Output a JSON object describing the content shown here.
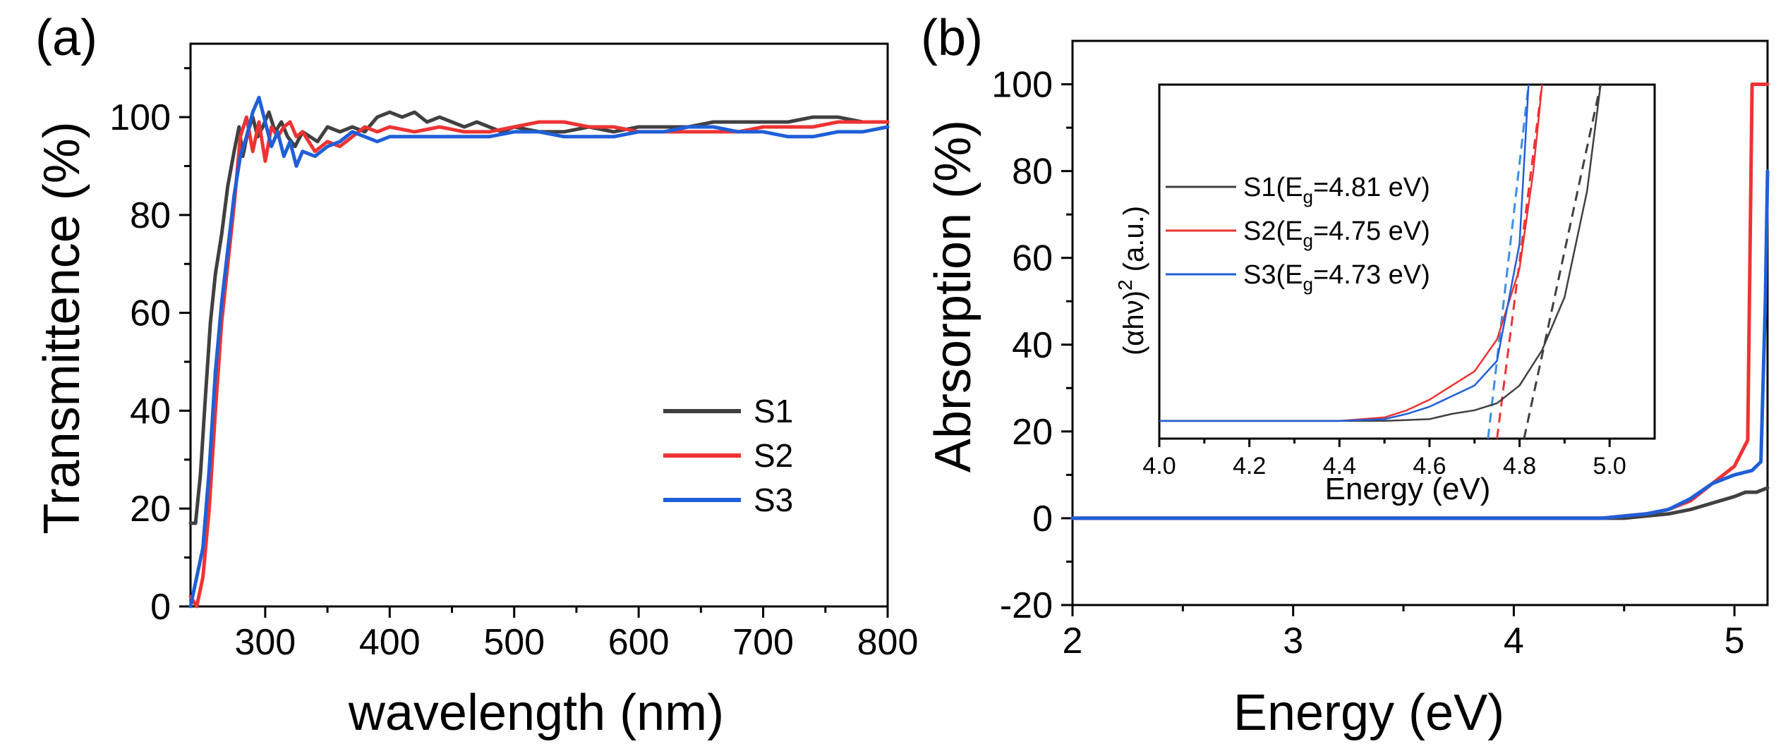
{
  "colors": {
    "S1": "#404040",
    "S2": "#ee3333",
    "S3": "#1f5fd8",
    "S3_light": "#3a8fe8"
  },
  "chart_data": [
    {
      "panel_label": "(a)",
      "type": "line",
      "title": "",
      "xlabel": "wavelength (nm)",
      "ylabel": "Transmittence (%)",
      "xlim": [
        240,
        800
      ],
      "ylim": [
        0,
        115
      ],
      "xticks": [
        300,
        400,
        500,
        600,
        700,
        800
      ],
      "yticks": [
        0,
        20,
        40,
        60,
        80,
        100
      ],
      "legend_position": "bottom-right",
      "legend": [
        "S1",
        "S2",
        "S3"
      ],
      "series": [
        {
          "name": "S1",
          "color": "#404040",
          "x": [
            240,
            244,
            248,
            252,
            256,
            260,
            265,
            270,
            275,
            279,
            282,
            286,
            290,
            294,
            298,
            303,
            308,
            313,
            318,
            324,
            330,
            336,
            342,
            350,
            360,
            370,
            380,
            390,
            400,
            410,
            420,
            430,
            440,
            450,
            460,
            470,
            480,
            490,
            500,
            520,
            540,
            560,
            580,
            600,
            620,
            640,
            660,
            680,
            700,
            720,
            740,
            760,
            780,
            800
          ],
          "y": [
            17,
            17,
            27,
            43,
            58,
            68,
            76,
            86,
            93,
            98,
            92,
            97,
            100,
            96,
            98,
            101,
            97,
            99,
            96,
            94,
            97,
            96,
            95,
            98,
            97,
            98,
            97,
            100,
            101,
            100,
            101,
            99,
            100,
            99,
            98,
            99,
            98,
            97,
            98,
            97,
            97,
            98,
            97,
            98,
            98,
            98,
            99,
            99,
            99,
            99,
            100,
            100,
            99,
            99
          ]
        },
        {
          "name": "S2",
          "color": "#ee3333",
          "x": [
            240,
            245,
            250,
            255,
            260,
            265,
            270,
            275,
            280,
            285,
            290,
            295,
            300,
            305,
            310,
            315,
            320,
            325,
            330,
            340,
            350,
            360,
            370,
            380,
            390,
            400,
            420,
            440,
            460,
            480,
            500,
            520,
            540,
            560,
            580,
            600,
            620,
            640,
            660,
            680,
            700,
            720,
            740,
            760,
            780,
            800
          ],
          "y": [
            2,
            0,
            6,
            20,
            40,
            58,
            70,
            82,
            96,
            100,
            93,
            99,
            91,
            98,
            96,
            98,
            99,
            96,
            97,
            93,
            95,
            94,
            96,
            98,
            97,
            98,
            97,
            98,
            97,
            97,
            98,
            99,
            99,
            98,
            98,
            97,
            97,
            97,
            97,
            97,
            98,
            98,
            98,
            99,
            99,
            99
          ]
        },
        {
          "name": "S3",
          "color": "#1f5fd8",
          "x": [
            240,
            245,
            250,
            255,
            260,
            265,
            270,
            275,
            280,
            285,
            290,
            295,
            300,
            305,
            310,
            315,
            320,
            325,
            330,
            340,
            350,
            360,
            370,
            380,
            390,
            400,
            420,
            440,
            460,
            480,
            500,
            520,
            540,
            560,
            580,
            600,
            620,
            640,
            660,
            680,
            700,
            720,
            740,
            760,
            780,
            800
          ],
          "y": [
            0,
            6,
            12,
            28,
            48,
            62,
            73,
            84,
            92,
            96,
            101,
            104,
            99,
            94,
            97,
            92,
            95,
            90,
            93,
            92,
            94,
            95,
            97,
            96,
            95,
            96,
            96,
            96,
            96,
            96,
            97,
            97,
            96,
            96,
            96,
            97,
            97,
            98,
            98,
            97,
            97,
            96,
            96,
            97,
            97,
            98
          ]
        }
      ]
    },
    {
      "panel_label": "(b)",
      "type": "line",
      "title": "",
      "xlabel": "Energy (eV)",
      "ylabel": "Abrsorption (%)",
      "xlim": [
        2,
        5.15
      ],
      "ylim": [
        -20,
        110
      ],
      "xticks": [
        2,
        3,
        4,
        5
      ],
      "yticks": [
        -20,
        0,
        20,
        40,
        60,
        80,
        100
      ],
      "series": [
        {
          "name": "S1",
          "color": "#404040",
          "x": [
            2.0,
            2.5,
            3.0,
            3.5,
            4.0,
            4.2,
            4.4,
            4.5,
            4.6,
            4.7,
            4.8,
            4.9,
            5.0,
            5.05,
            5.1,
            5.15
          ],
          "y": [
            0,
            0,
            0,
            0,
            0,
            0,
            0,
            0,
            0.5,
            1,
            2,
            3.5,
            5,
            6,
            6,
            7
          ]
        },
        {
          "name": "S2",
          "color": "#ee3333",
          "x": [
            2.0,
            2.5,
            3.0,
            3.5,
            4.0,
            4.2,
            4.4,
            4.5,
            4.6,
            4.7,
            4.8,
            4.9,
            5.0,
            5.06,
            5.08,
            5.1,
            5.15
          ],
          "y": [
            0,
            0,
            0,
            0,
            0,
            0,
            0,
            0.5,
            1,
            2,
            4,
            8,
            12,
            18,
            100,
            100,
            100
          ]
        },
        {
          "name": "S3",
          "color": "#1f5fd8",
          "x": [
            2.0,
            2.5,
            3.0,
            3.5,
            4.0,
            4.2,
            4.4,
            4.5,
            4.6,
            4.7,
            4.8,
            4.9,
            5.0,
            5.08,
            5.12,
            5.14,
            5.15
          ],
          "y": [
            0,
            0,
            0,
            0,
            0,
            0,
            0,
            0.5,
            1,
            2,
            4.5,
            8,
            10,
            11,
            13,
            50,
            80
          ]
        }
      ]
    },
    {
      "panel_label": "inset",
      "type": "line",
      "title": "",
      "xlabel": "Energy (eV)",
      "ylabel_parts": {
        "pre": "(αhν)",
        "sup": "2",
        "post": " (a.u.)"
      },
      "xlim": [
        4.0,
        5.1
      ],
      "ylim": [
        0,
        1
      ],
      "xticks": [
        4.0,
        4.2,
        4.4,
        4.6,
        4.8,
        5.0
      ],
      "xtick_labels": [
        "4.0",
        "4.2",
        "4.4",
        "4.6",
        "4.8",
        "5.0"
      ],
      "legend_position": "top-left",
      "legend": [
        {
          "name": "S1",
          "pre": "S1(E",
          "sub": "g",
          "post": "=4.81 eV)"
        },
        {
          "name": "S2",
          "pre": "S2(E",
          "sub": "g",
          "post": "=4.75 eV)"
        },
        {
          "name": "S3",
          "pre": "S3(E",
          "sub": "g",
          "post": "=4.73 eV)"
        }
      ],
      "series": [
        {
          "name": "S1",
          "color": "#404040",
          "x": [
            4.0,
            4.2,
            4.4,
            4.5,
            4.6,
            4.65,
            4.7,
            4.75,
            4.8,
            4.85,
            4.9,
            4.95,
            4.98
          ],
          "y": [
            0.05,
            0.05,
            0.05,
            0.05,
            0.055,
            0.07,
            0.08,
            0.1,
            0.15,
            0.25,
            0.4,
            0.7,
            1.0
          ]
        },
        {
          "name": "S2",
          "color": "#ee3333",
          "x": [
            4.0,
            4.2,
            4.4,
            4.5,
            4.55,
            4.6,
            4.65,
            4.7,
            4.75,
            4.8,
            4.83,
            4.85
          ],
          "y": [
            0.05,
            0.05,
            0.05,
            0.06,
            0.08,
            0.11,
            0.15,
            0.19,
            0.28,
            0.48,
            0.75,
            1.0
          ]
        },
        {
          "name": "S3",
          "color": "#1f5fd8",
          "x": [
            4.0,
            4.2,
            4.4,
            4.5,
            4.55,
            4.6,
            4.65,
            4.7,
            4.75,
            4.8,
            4.82
          ],
          "y": [
            0.05,
            0.05,
            0.05,
            0.055,
            0.07,
            0.09,
            0.12,
            0.15,
            0.22,
            0.55,
            1.0
          ]
        }
      ],
      "fits": [
        {
          "name": "S1",
          "color": "#404040",
          "x0": 4.81,
          "x1": 4.98,
          "y1": 1.0
        },
        {
          "name": "S2",
          "color": "#ee3333",
          "x0": 4.75,
          "x1": 4.85,
          "y1": 1.0
        },
        {
          "name": "S3",
          "color": "#3a8fe8",
          "x0": 4.73,
          "x1": 4.82,
          "y1": 1.0
        }
      ]
    }
  ]
}
